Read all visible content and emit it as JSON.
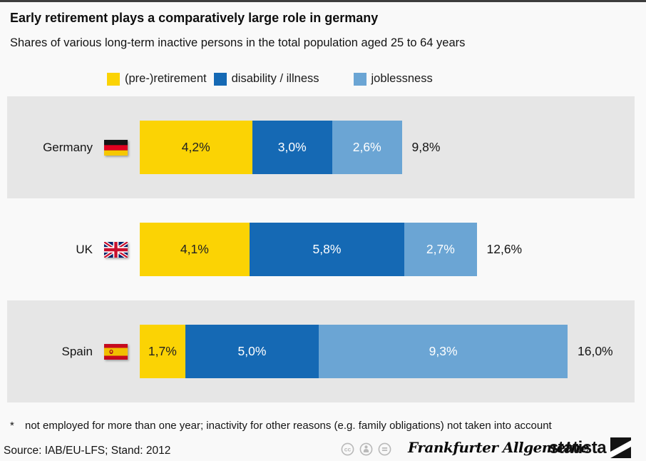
{
  "header": {
    "title": "Early retirement plays a comparatively large role in germany",
    "subtitle": "Shares of various long-term inactive persons in the total population aged 25 to 64 years"
  },
  "chart_data": {
    "type": "bar",
    "variant": "horizontal_stacked",
    "categories": [
      "Germany",
      "UK",
      "Spain"
    ],
    "series": [
      {
        "name": "(pre-)retirement",
        "color": "#fbd304",
        "values": [
          4.2,
          4.1,
          1.7
        ]
      },
      {
        "name": "disability / illness",
        "color": "#1569b4",
        "values": [
          3.0,
          5.8,
          5.0
        ]
      },
      {
        "name": "joblessness",
        "color": "#6ba5d4",
        "values": [
          2.6,
          2.7,
          9.3
        ]
      }
    ],
    "totals": [
      9.8,
      12.6,
      16.0
    ],
    "value_labels": [
      [
        "4,2%",
        "3,0%",
        "2,6%"
      ],
      [
        "4,1%",
        "5,8%",
        "2,7%"
      ],
      [
        "1,7%",
        "5,0%",
        "9,3%"
      ]
    ],
    "total_labels": [
      "9,8%",
      "12,6%",
      "16,0%"
    ],
    "unit": "%",
    "decimal_separator": ",",
    "legend_position": "top",
    "grid": false
  },
  "flags": [
    "germany-flag",
    "uk-flag",
    "spain-flag"
  ],
  "colors": {
    "stripe_band": "#e6e6e6",
    "page_background": "#f9f9f9",
    "yellow": "#fbd304",
    "dark_blue": "#1569b4",
    "light_blue": "#6ba5d4",
    "footer_gray": "#b9b9b9"
  },
  "footnote": {
    "marker": "*",
    "text": "not employed for more than one year; inactivity for other reasons (e.g. family obligations) not taken into account"
  },
  "footer": {
    "source": "Source: IAB/EU-LFS; Stand: 2012",
    "license_icons": [
      "cc-icon",
      "attribution-icon",
      "no-derivatives-icon"
    ],
    "brand_primary": "Frankfurter Allgemeine",
    "brand_secondary": "statista"
  }
}
